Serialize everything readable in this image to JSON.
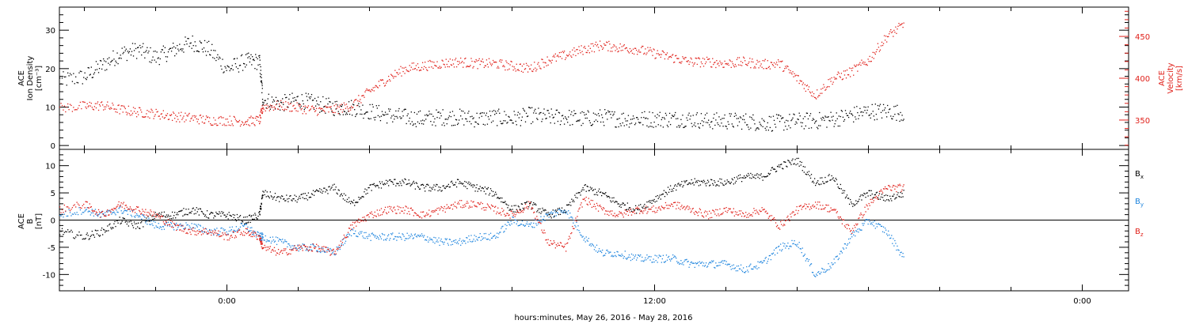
{
  "xaxis": {
    "title": "hours:minutes, May 26, 2016 - May 28, 2016",
    "tick_labels": [
      "0:00",
      "12:00",
      "0:00"
    ],
    "tick_hours": [
      0,
      12,
      24
    ],
    "range_hours": [
      -4.7,
      25.3
    ],
    "minor_step_hours": 2
  },
  "chart_data": [
    {
      "type": "scatter",
      "panel": "top",
      "left_label": [
        "ACE",
        "Ion Density",
        "[cm⁻³]"
      ],
      "right_label": [
        "ACE",
        "Velocity",
        "[km/s]"
      ],
      "left_axis": {
        "range": [
          -1,
          36
        ],
        "major_ticks": [
          0,
          10,
          20,
          30
        ],
        "minor_step": 2,
        "color": "#000000"
      },
      "right_axis": {
        "range": [
          315,
          485
        ],
        "major_ticks": [
          350,
          400,
          450
        ],
        "minor_step": 10,
        "color": "#e0201a"
      },
      "series": [
        {
          "name": "Ion Density",
          "axis": "left",
          "color": "#000000",
          "x_hours": [
            -4.7,
            -4.0,
            -3.5,
            -3.0,
            -2.5,
            -2.0,
            -1.5,
            -1.0,
            -0.5,
            0.0,
            0.5,
            0.9,
            1.0,
            1.5,
            2.0,
            2.5,
            3.0,
            3.5,
            4.0,
            4.5,
            5.0,
            5.5,
            6.0,
            6.5,
            7.0,
            7.5,
            8.0,
            8.5,
            9.0,
            9.5,
            10.0,
            10.5,
            11.0,
            11.5,
            12.0,
            12.5,
            13.0,
            13.5,
            14.0,
            14.5,
            15.0,
            15.5,
            16.0,
            16.5,
            17.0,
            17.5,
            18.0,
            18.5,
            19.0
          ],
          "values": [
            17,
            18,
            21,
            24,
            25,
            23,
            25,
            27,
            25,
            20,
            22,
            22,
            12,
            11,
            12,
            11,
            10,
            10,
            9,
            8,
            7.5,
            7,
            7.5,
            7.5,
            7,
            7.5,
            7,
            8,
            7.5,
            7.5,
            7,
            7.5,
            7,
            7,
            7,
            7,
            7,
            6.5,
            6.5,
            6.5,
            6,
            6,
            6.5,
            6.5,
            7,
            8,
            9,
            9,
            8.5
          ]
        },
        {
          "name": "Velocity",
          "axis": "right",
          "color": "#e0201a",
          "x_hours": [
            -4.7,
            -4.0,
            -3.5,
            -3.0,
            -2.5,
            -2.0,
            -1.5,
            -1.0,
            -0.5,
            0.0,
            0.5,
            0.9,
            1.0,
            1.5,
            2.0,
            2.5,
            3.0,
            3.5,
            4.0,
            4.5,
            5.0,
            5.5,
            6.0,
            6.5,
            7.0,
            7.5,
            8.0,
            8.5,
            9.0,
            9.5,
            10.0,
            10.5,
            11.0,
            11.5,
            12.0,
            12.5,
            13.0,
            13.5,
            14.0,
            14.5,
            15.0,
            15.5,
            16.0,
            16.5,
            17.0,
            17.5,
            18.0,
            18.5,
            19.0
          ],
          "values": [
            365,
            367,
            368,
            363,
            360,
            358,
            355,
            353,
            350,
            350,
            349,
            350,
            366,
            368,
            365,
            362,
            363,
            368,
            385,
            400,
            412,
            415,
            418,
            420,
            418,
            418,
            415,
            412,
            422,
            428,
            435,
            440,
            437,
            435,
            430,
            425,
            420,
            420,
            418,
            420,
            417,
            418,
            400,
            380,
            400,
            408,
            422,
            450,
            465
          ]
        }
      ]
    },
    {
      "type": "scatter",
      "panel": "bottom",
      "left_label": [
        "ACE",
        "B",
        "[nT]"
      ],
      "y_axis": {
        "range": [
          -13,
          13
        ],
        "major_ticks": [
          -10,
          -5,
          0,
          5,
          10
        ],
        "minor_step": 1
      },
      "zero_line": true,
      "series": [
        {
          "name": "Bx",
          "label_main": "B",
          "label_sub": "x",
          "color": "#000000",
          "x_hours": [
            -4.7,
            -4.0,
            -3.5,
            -3.0,
            -2.5,
            -2.0,
            -1.5,
            -1.0,
            -0.5,
            0.0,
            0.5,
            0.9,
            1.0,
            1.5,
            2.0,
            2.5,
            3.0,
            3.5,
            4.0,
            4.5,
            5.0,
            5.5,
            6.0,
            6.5,
            7.0,
            7.5,
            8.0,
            8.5,
            9.0,
            9.5,
            10.0,
            10.5,
            11.0,
            11.5,
            12.0,
            12.5,
            13.0,
            13.5,
            14.0,
            14.5,
            15.0,
            15.5,
            16.0,
            16.5,
            17.0,
            17.5,
            18.0,
            18.5,
            19.0
          ],
          "values": [
            -2,
            -3,
            -2,
            0,
            -1,
            1,
            1,
            2,
            1,
            1,
            0,
            1,
            5,
            4,
            4,
            5,
            6,
            3,
            6,
            7,
            7,
            6,
            6,
            7,
            6,
            5,
            2,
            3,
            1,
            2,
            6,
            5,
            3,
            2,
            4,
            6,
            7,
            7,
            7,
            8,
            8,
            10,
            11,
            7,
            8,
            3,
            5,
            4,
            5
          ]
        },
        {
          "name": "By",
          "label_main": "B",
          "label_sub": "y",
          "color": "#1f85de",
          "x_hours": [
            -4.7,
            -4.0,
            -3.5,
            -3.0,
            -2.5,
            -2.0,
            -1.5,
            -1.0,
            -0.5,
            0.0,
            0.5,
            0.9,
            1.0,
            1.5,
            2.0,
            2.5,
            3.0,
            3.5,
            4.0,
            4.5,
            5.0,
            5.5,
            6.0,
            6.5,
            7.0,
            7.5,
            8.0,
            8.5,
            9.0,
            9.5,
            10.0,
            10.5,
            11.0,
            11.5,
            12.0,
            12.5,
            13.0,
            13.5,
            14.0,
            14.5,
            15.0,
            15.5,
            16.0,
            16.5,
            17.0,
            17.5,
            18.0,
            18.5,
            19.0
          ],
          "values": [
            1,
            2,
            1,
            2,
            1,
            -1,
            -1,
            -1,
            -2,
            -2,
            -1,
            -3,
            -3,
            -4,
            -5,
            -5,
            -6,
            -2,
            -3,
            -3,
            -3,
            -3,
            -4,
            -4,
            -3,
            -3,
            0,
            -1,
            1,
            2,
            -3,
            -6,
            -6,
            -7,
            -7,
            -7,
            -8,
            -8,
            -8,
            -9,
            -8,
            -5,
            -4,
            -10,
            -8,
            -3,
            0,
            -2,
            -7
          ]
        },
        {
          "name": "Bz",
          "label_main": "B",
          "label_sub": "z",
          "color": "#e0201a",
          "x_hours": [
            -4.7,
            -4.0,
            -3.5,
            -3.0,
            -2.5,
            -2.0,
            -1.5,
            -1.0,
            -0.5,
            0.0,
            0.5,
            0.9,
            1.0,
            1.5,
            2.0,
            2.5,
            3.0,
            3.5,
            4.0,
            4.5,
            5.0,
            5.5,
            6.0,
            6.5,
            7.0,
            7.5,
            8.0,
            8.5,
            9.0,
            9.5,
            10.0,
            10.5,
            11.0,
            11.5,
            12.0,
            12.5,
            13.0,
            13.5,
            14.0,
            14.5,
            15.0,
            15.5,
            16.0,
            16.5,
            17.0,
            17.5,
            18.0,
            18.5,
            19.0
          ],
          "values": [
            2,
            3,
            1,
            3,
            2,
            1,
            -1,
            -2,
            -2,
            -3,
            -2,
            -3,
            -5,
            -6,
            -5,
            -5,
            -6,
            -1,
            1,
            2,
            2,
            1,
            2,
            3,
            3,
            2,
            1,
            3,
            -4,
            -5,
            4,
            2,
            1,
            2,
            2,
            3,
            2,
            1,
            2,
            1,
            2,
            -1,
            2,
            3,
            2,
            -2,
            3,
            6,
            6
          ]
        }
      ]
    }
  ]
}
